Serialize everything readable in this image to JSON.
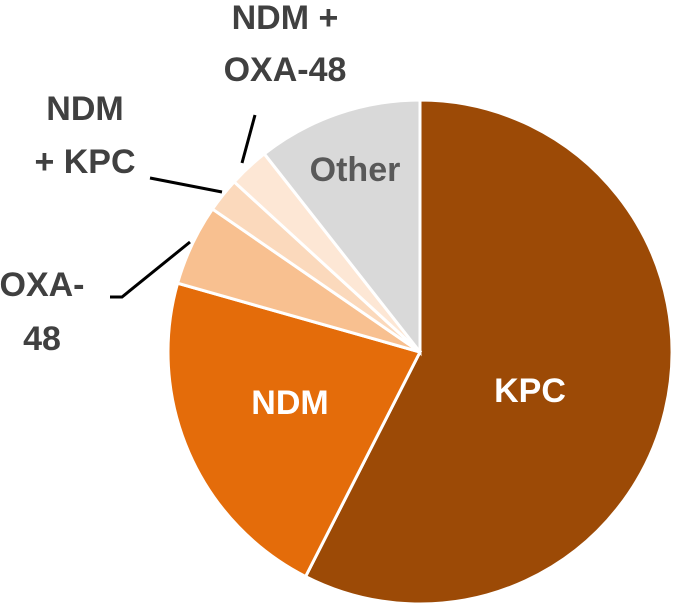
{
  "chart_data": {
    "type": "pie",
    "categories": [
      "KPC",
      "NDM",
      "OXA-48",
      "NDM + KPC",
      "NDM + OXA-48",
      "Other"
    ],
    "values": [
      57.5,
      21.9,
      5.2,
      2.2,
      2.6,
      10.6
    ],
    "colors": [
      "#9c4a06",
      "#e46c0a",
      "#f8c090",
      "#fbd9bc",
      "#fde7d5",
      "#d9d9d9"
    ]
  }
}
